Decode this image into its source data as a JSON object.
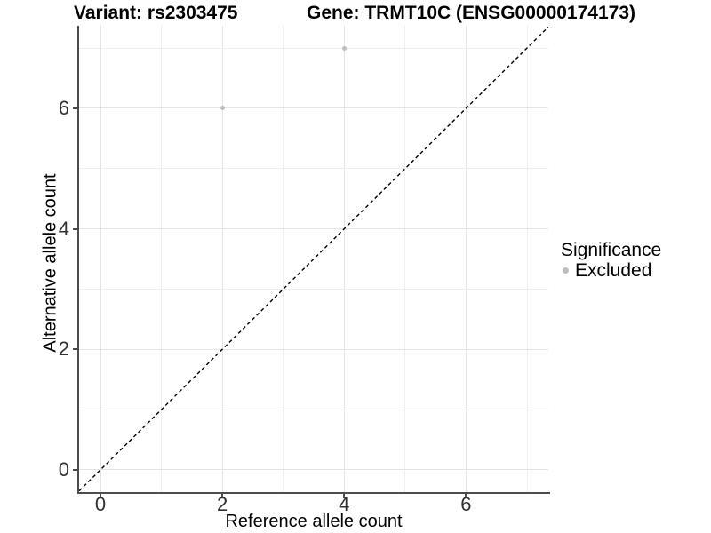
{
  "chart_data": {
    "type": "scatter",
    "title": {
      "left": "Variant: rs2303475",
      "right": "Gene: TRMT10C (ENSG00000174173)"
    },
    "xlabel": "Reference allele count",
    "ylabel": "Alternative allele count",
    "xlim": [
      -0.35,
      7.35
    ],
    "ylim": [
      -0.37,
      7.37
    ],
    "x_ticks": [
      0,
      2,
      4,
      6
    ],
    "y_ticks": [
      0,
      2,
      4,
      6
    ],
    "x_gridlines": [
      0,
      1,
      2,
      3,
      4,
      5,
      6,
      7
    ],
    "y_gridlines": [
      0,
      1,
      2,
      3,
      4,
      5,
      6,
      7
    ],
    "grid": true,
    "series": [
      {
        "name": "Excluded",
        "color": "#BEBEBE",
        "points": [
          {
            "x": 2,
            "y": 6
          },
          {
            "x": 4,
            "y": 7
          }
        ]
      }
    ],
    "reference_line": {
      "type": "identity",
      "slope": 1,
      "intercept": 0,
      "style": "dashed",
      "color": "#000000"
    },
    "legend": {
      "title": "Significance",
      "position": "right",
      "items": [
        {
          "label": "Excluded",
          "color": "#BEBEBE",
          "marker": "circle"
        }
      ]
    },
    "colors": {
      "background": "#FFFFFF",
      "gridline_major": "#E4E4E4",
      "gridline_minor": "#EFEFEF",
      "axis_line": "#4D4D4D",
      "tick_label": "#303030",
      "point": "#BEBEBE",
      "dashed_line": "#000000"
    }
  }
}
